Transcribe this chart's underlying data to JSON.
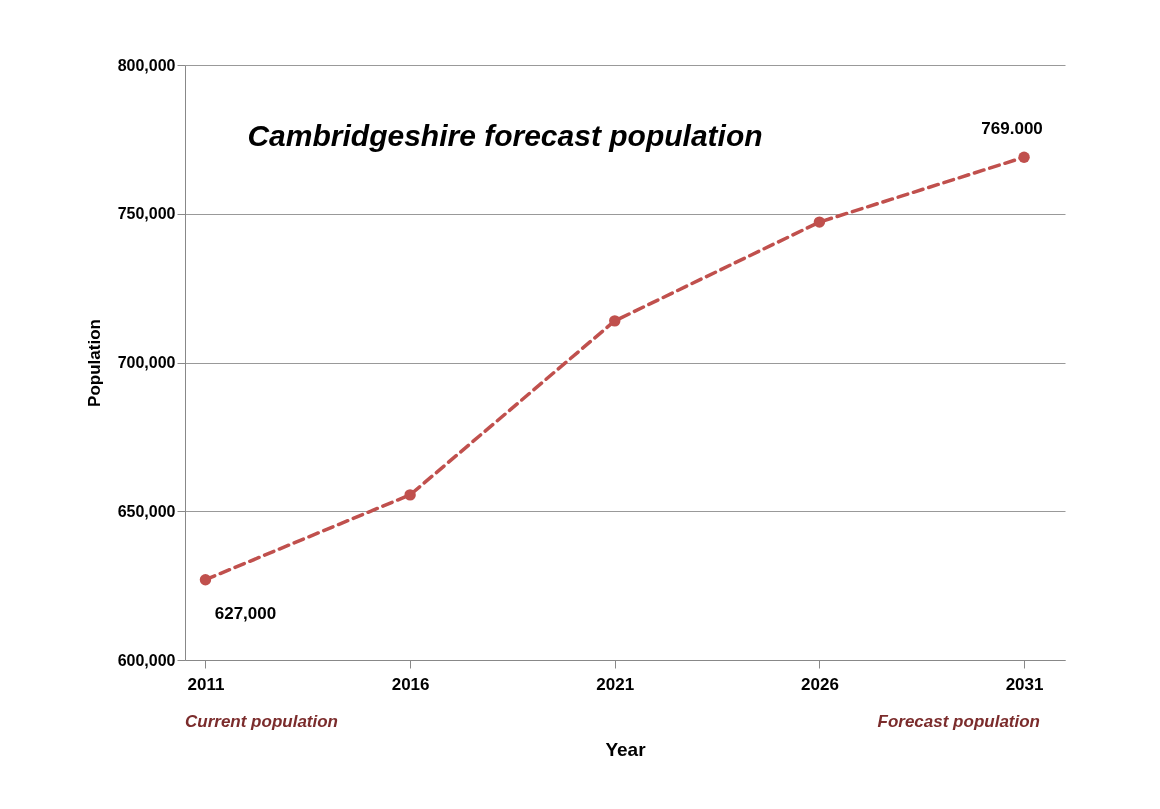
{
  "chart_data": {
    "type": "line",
    "title": "Cambridgeshire forecast population",
    "xlabel": "Year",
    "ylabel": "Population",
    "x": [
      2011,
      2016,
      2021,
      2026,
      2031
    ],
    "series": [
      {
        "color": "#c0504d",
        "values": [
          627000,
          655500,
          714000,
          747200,
          769000
        ]
      }
    ],
    "xlim": [
      2010.5,
      2032
    ],
    "xticks": [
      2011,
      2016,
      2021,
      2026,
      2031
    ],
    "ylim": [
      600000,
      800000
    ],
    "yticks": [
      {
        "value": 600000,
        "label": "600,000"
      },
      {
        "value": 650000,
        "label": "650,000"
      },
      {
        "value": 700000,
        "label": "700,000"
      },
      {
        "value": 750000,
        "label": "750,000"
      },
      {
        "value": 800000,
        "label": "800,000"
      }
    ],
    "grid": "y",
    "marker": "circle",
    "line_style": "dashed",
    "annotations": [
      {
        "text": "627,000",
        "x": 2011,
        "y": 627000
      },
      {
        "text": "769.000",
        "x": 2031,
        "y": 769000
      },
      "Current population",
      "Forecast population"
    ]
  }
}
